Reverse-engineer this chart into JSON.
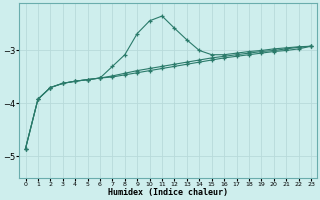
{
  "xlabel": "Humidex (Indice chaleur)",
  "background_color": "#ceeeed",
  "line_color": "#2a7a6a",
  "grid_color": "#b8dada",
  "x_values": [
    0,
    1,
    2,
    3,
    4,
    5,
    6,
    7,
    8,
    9,
    10,
    11,
    12,
    13,
    14,
    15,
    16,
    17,
    18,
    19,
    20,
    21,
    22,
    23
  ],
  "c1": [
    -4.85,
    -3.92,
    -3.7,
    -3.62,
    -3.58,
    -3.55,
    -3.52,
    -3.5,
    -3.46,
    -3.42,
    -3.38,
    -3.34,
    -3.3,
    -3.26,
    -3.22,
    -3.18,
    -3.14,
    -3.11,
    -3.08,
    -3.05,
    -3.02,
    -3.0,
    -2.97,
    -2.92
  ],
  "c2": [
    -4.85,
    -3.92,
    -3.7,
    -3.62,
    -3.58,
    -3.55,
    -3.52,
    -3.3,
    -3.08,
    -2.68,
    -2.44,
    -2.35,
    -2.58,
    -2.8,
    -3.0,
    -3.08,
    -3.08,
    -3.05,
    -3.02,
    -3.0,
    -2.97,
    -2.95,
    -2.93,
    -2.92
  ],
  "c3": [
    -4.85,
    -3.92,
    -3.7,
    -3.62,
    -3.58,
    -3.55,
    -3.52,
    -3.48,
    -3.43,
    -3.38,
    -3.34,
    -3.3,
    -3.26,
    -3.22,
    -3.18,
    -3.14,
    -3.11,
    -3.08,
    -3.05,
    -3.02,
    -3.0,
    -2.97,
    -2.94,
    -2.92
  ],
  "ylim": [
    -5.4,
    -2.1
  ],
  "yticks": [
    -5,
    -4,
    -3
  ],
  "xlim": [
    -0.5,
    23.5
  ],
  "xticks": [
    0,
    1,
    2,
    3,
    4,
    5,
    6,
    7,
    8,
    9,
    10,
    11,
    12,
    13,
    14,
    15,
    16,
    17,
    18,
    19,
    20,
    21,
    22,
    23
  ]
}
